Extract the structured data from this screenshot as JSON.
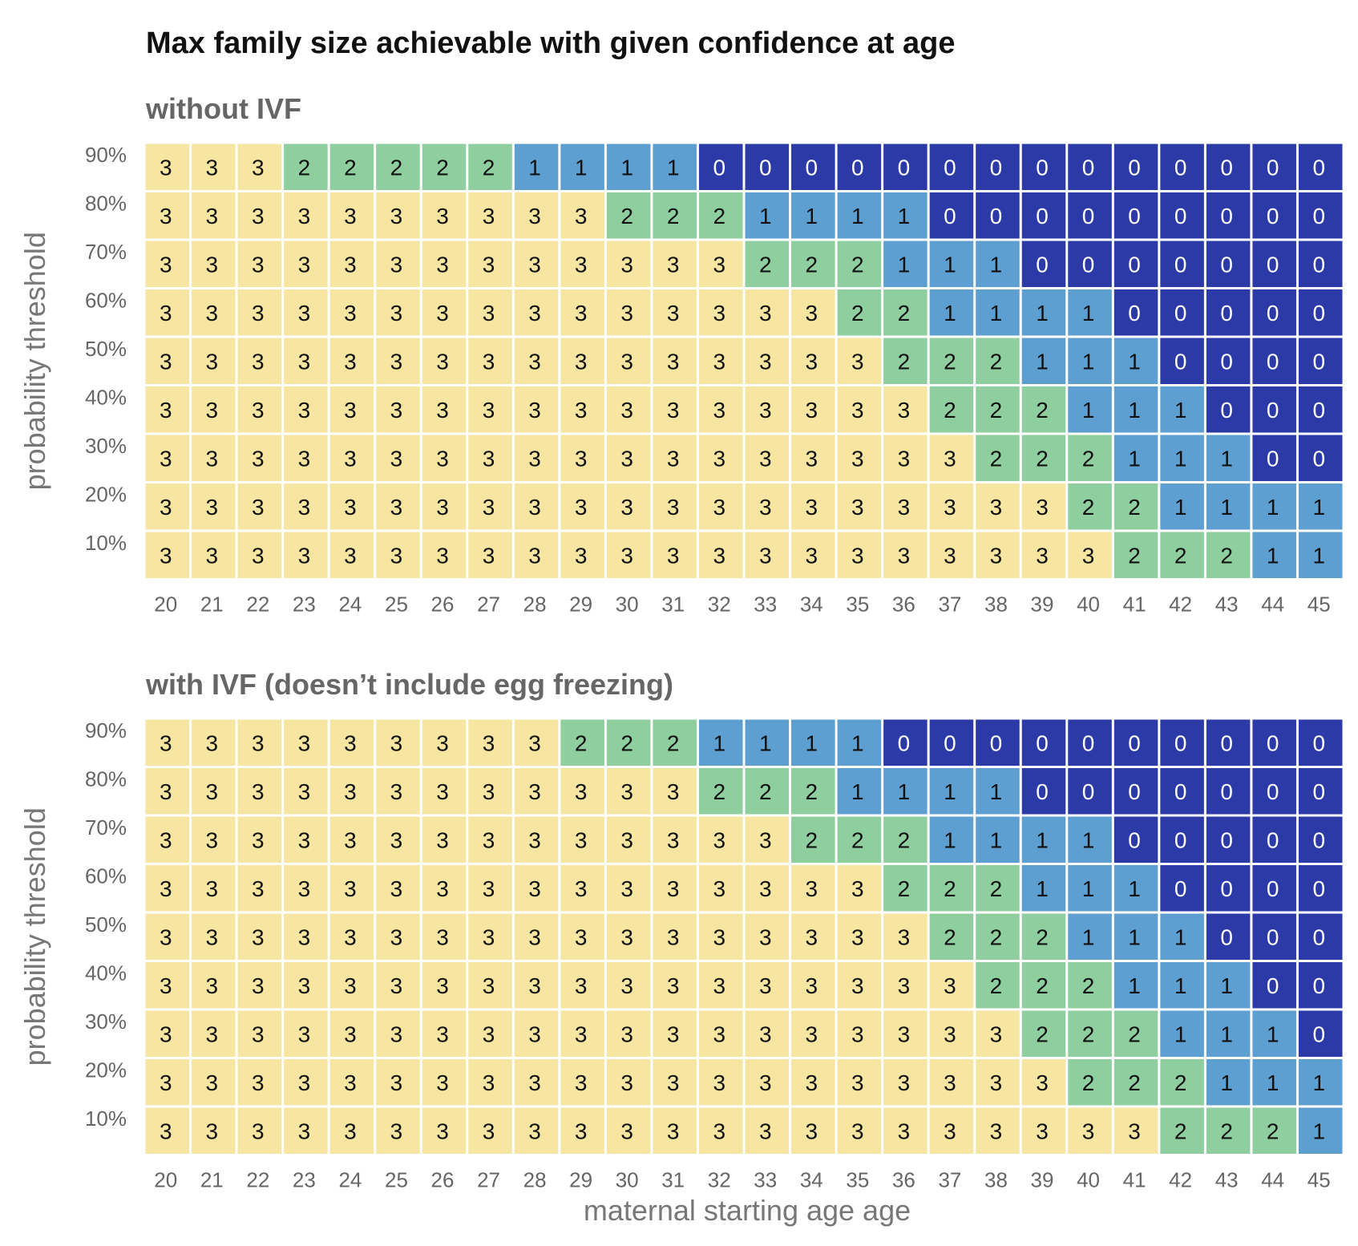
{
  "colors": {
    "0": "#2b3aa6",
    "1": "#5e9fd2",
    "2": "#8fcf9f",
    "3": "#f7e6a1",
    "text_dark": "#111111",
    "text_light": "#ffffff",
    "grid": "#ffffff"
  },
  "chart_data": {
    "type": "heatmap",
    "title": "Max family size achievable with given confidence at age",
    "xlabel": "maternal starting age age",
    "ylabel": "probability threshold",
    "x": [
      "20",
      "21",
      "22",
      "23",
      "24",
      "25",
      "26",
      "27",
      "28",
      "29",
      "30",
      "31",
      "32",
      "33",
      "34",
      "35",
      "36",
      "37",
      "38",
      "39",
      "40",
      "41",
      "42",
      "43",
      "44",
      "45"
    ],
    "y": [
      "90%",
      "80%",
      "70%",
      "60%",
      "50%",
      "40%",
      "30%",
      "20%",
      "10%"
    ],
    "panels": [
      {
        "subtitle": "without IVF",
        "values": [
          [
            3,
            3,
            3,
            2,
            2,
            2,
            2,
            2,
            1,
            1,
            1,
            1,
            0,
            0,
            0,
            0,
            0,
            0,
            0,
            0,
            0,
            0,
            0,
            0,
            0,
            0
          ],
          [
            3,
            3,
            3,
            3,
            3,
            3,
            3,
            3,
            3,
            3,
            2,
            2,
            2,
            1,
            1,
            1,
            1,
            0,
            0,
            0,
            0,
            0,
            0,
            0,
            0,
            0
          ],
          [
            3,
            3,
            3,
            3,
            3,
            3,
            3,
            3,
            3,
            3,
            3,
            3,
            3,
            2,
            2,
            2,
            1,
            1,
            1,
            0,
            0,
            0,
            0,
            0,
            0,
            0
          ],
          [
            3,
            3,
            3,
            3,
            3,
            3,
            3,
            3,
            3,
            3,
            3,
            3,
            3,
            3,
            3,
            2,
            2,
            1,
            1,
            1,
            1,
            0,
            0,
            0,
            0,
            0
          ],
          [
            3,
            3,
            3,
            3,
            3,
            3,
            3,
            3,
            3,
            3,
            3,
            3,
            3,
            3,
            3,
            3,
            2,
            2,
            2,
            1,
            1,
            1,
            0,
            0,
            0,
            0
          ],
          [
            3,
            3,
            3,
            3,
            3,
            3,
            3,
            3,
            3,
            3,
            3,
            3,
            3,
            3,
            3,
            3,
            3,
            2,
            2,
            2,
            1,
            1,
            1,
            0,
            0,
            0
          ],
          [
            3,
            3,
            3,
            3,
            3,
            3,
            3,
            3,
            3,
            3,
            3,
            3,
            3,
            3,
            3,
            3,
            3,
            3,
            2,
            2,
            2,
            1,
            1,
            1,
            0,
            0
          ],
          [
            3,
            3,
            3,
            3,
            3,
            3,
            3,
            3,
            3,
            3,
            3,
            3,
            3,
            3,
            3,
            3,
            3,
            3,
            3,
            3,
            2,
            2,
            1,
            1,
            1,
            1
          ],
          [
            3,
            3,
            3,
            3,
            3,
            3,
            3,
            3,
            3,
            3,
            3,
            3,
            3,
            3,
            3,
            3,
            3,
            3,
            3,
            3,
            3,
            2,
            2,
            2,
            1,
            1
          ]
        ]
      },
      {
        "subtitle": "with IVF (doesn’t include egg freezing)",
        "values": [
          [
            3,
            3,
            3,
            3,
            3,
            3,
            3,
            3,
            3,
            2,
            2,
            2,
            1,
            1,
            1,
            1,
            0,
            0,
            0,
            0,
            0,
            0,
            0,
            0,
            0,
            0
          ],
          [
            3,
            3,
            3,
            3,
            3,
            3,
            3,
            3,
            3,
            3,
            3,
            3,
            2,
            2,
            2,
            1,
            1,
            1,
            1,
            0,
            0,
            0,
            0,
            0,
            0,
            0
          ],
          [
            3,
            3,
            3,
            3,
            3,
            3,
            3,
            3,
            3,
            3,
            3,
            3,
            3,
            3,
            2,
            2,
            2,
            1,
            1,
            1,
            1,
            0,
            0,
            0,
            0,
            0
          ],
          [
            3,
            3,
            3,
            3,
            3,
            3,
            3,
            3,
            3,
            3,
            3,
            3,
            3,
            3,
            3,
            3,
            2,
            2,
            2,
            1,
            1,
            1,
            0,
            0,
            0,
            0
          ],
          [
            3,
            3,
            3,
            3,
            3,
            3,
            3,
            3,
            3,
            3,
            3,
            3,
            3,
            3,
            3,
            3,
            3,
            2,
            2,
            2,
            1,
            1,
            1,
            0,
            0,
            0
          ],
          [
            3,
            3,
            3,
            3,
            3,
            3,
            3,
            3,
            3,
            3,
            3,
            3,
            3,
            3,
            3,
            3,
            3,
            3,
            2,
            2,
            2,
            1,
            1,
            1,
            0,
            0
          ],
          [
            3,
            3,
            3,
            3,
            3,
            3,
            3,
            3,
            3,
            3,
            3,
            3,
            3,
            3,
            3,
            3,
            3,
            3,
            3,
            2,
            2,
            2,
            1,
            1,
            1,
            0
          ],
          [
            3,
            3,
            3,
            3,
            3,
            3,
            3,
            3,
            3,
            3,
            3,
            3,
            3,
            3,
            3,
            3,
            3,
            3,
            3,
            3,
            2,
            2,
            2,
            1,
            1,
            1
          ],
          [
            3,
            3,
            3,
            3,
            3,
            3,
            3,
            3,
            3,
            3,
            3,
            3,
            3,
            3,
            3,
            3,
            3,
            3,
            3,
            3,
            3,
            3,
            2,
            2,
            2,
            1
          ]
        ]
      }
    ]
  }
}
